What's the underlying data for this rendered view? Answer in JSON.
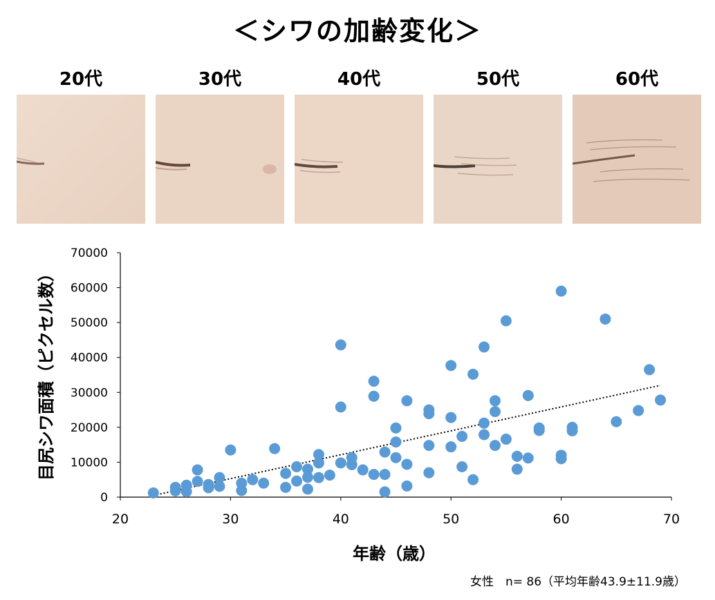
{
  "title": "＜シワの加齢変化＞",
  "photos": [
    {
      "label": "20代"
    },
    {
      "label": "30代"
    },
    {
      "label": "40代"
    },
    {
      "label": "50代"
    },
    {
      "label": "60代"
    }
  ],
  "footnote": "女性　n= 86（平均年齢43.9±11.9歳）",
  "colors": {
    "points": "#5B9BD5",
    "trendline": "#000000",
    "skin": "#e8d3c3"
  },
  "chart_data": {
    "type": "scatter",
    "xlabel": "年齢（歳）",
    "ylabel": "目尻シワ面積（ピクセル数）",
    "xlim": [
      20,
      70
    ],
    "ylim": [
      0,
      70000
    ],
    "xticks": [
      20,
      30,
      40,
      50,
      60,
      70
    ],
    "yticks": [
      0,
      10000,
      20000,
      30000,
      40000,
      50000,
      60000,
      70000
    ],
    "grid": false,
    "trendline": {
      "style": "dotted",
      "type": "linear",
      "from": [
        23,
        500
      ],
      "to": [
        69,
        32000
      ]
    },
    "points": [
      [
        23,
        1200
      ],
      [
        25,
        2800
      ],
      [
        25,
        1800
      ],
      [
        26,
        3400
      ],
      [
        26,
        1600
      ],
      [
        27,
        7800
      ],
      [
        27,
        4500
      ],
      [
        28,
        3600
      ],
      [
        28,
        2700
      ],
      [
        29,
        5600
      ],
      [
        29,
        3100
      ],
      [
        30,
        13500
      ],
      [
        31,
        4000
      ],
      [
        31,
        1900
      ],
      [
        32,
        5000
      ],
      [
        33,
        4000
      ],
      [
        34,
        13900
      ],
      [
        35,
        6800
      ],
      [
        35,
        2800
      ],
      [
        36,
        8700
      ],
      [
        36,
        4600
      ],
      [
        37,
        8000
      ],
      [
        37,
        5700
      ],
      [
        37,
        2300
      ],
      [
        38,
        12200
      ],
      [
        38,
        9800
      ],
      [
        38,
        5600
      ],
      [
        39,
        6300
      ],
      [
        40,
        43600
      ],
      [
        40,
        25800
      ],
      [
        40,
        9800
      ],
      [
        41,
        11300
      ],
      [
        41,
        9300
      ],
      [
        42,
        7800
      ],
      [
        43,
        33200
      ],
      [
        43,
        28900
      ],
      [
        43,
        6500
      ],
      [
        44,
        12900
      ],
      [
        44,
        6500
      ],
      [
        44,
        1500
      ],
      [
        45,
        19800
      ],
      [
        45,
        15800
      ],
      [
        45,
        11300
      ],
      [
        46,
        27600
      ],
      [
        46,
        9400
      ],
      [
        46,
        3200
      ],
      [
        48,
        25000
      ],
      [
        48,
        23900
      ],
      [
        48,
        14800
      ],
      [
        48,
        7000
      ],
      [
        50,
        37700
      ],
      [
        50,
        22800
      ],
      [
        50,
        14400
      ],
      [
        51,
        17400
      ],
      [
        51,
        8700
      ],
      [
        52,
        35200
      ],
      [
        52,
        5000
      ],
      [
        53,
        43000
      ],
      [
        53,
        21200
      ],
      [
        53,
        17900
      ],
      [
        54,
        27600
      ],
      [
        54,
        24500
      ],
      [
        54,
        14800
      ],
      [
        55,
        50500
      ],
      [
        55,
        16600
      ],
      [
        56,
        11700
      ],
      [
        56,
        8000
      ],
      [
        57,
        29100
      ],
      [
        57,
        11200
      ],
      [
        58,
        19800
      ],
      [
        58,
        19100
      ],
      [
        60,
        59000
      ],
      [
        60,
        12000
      ],
      [
        60,
        11000
      ],
      [
        61,
        20000
      ],
      [
        61,
        19000
      ],
      [
        64,
        51000
      ],
      [
        65,
        21600
      ],
      [
        67,
        24800
      ],
      [
        68,
        36500
      ],
      [
        69,
        27800
      ]
    ]
  }
}
